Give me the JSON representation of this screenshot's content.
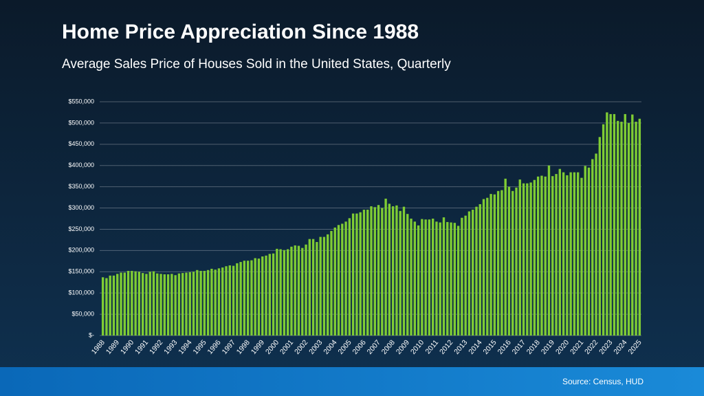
{
  "chart_data": {
    "type": "bar",
    "title": "Home Price Appreciation Since 1988",
    "subtitle": "Average Sales Price of Houses Sold in the United States, Quarterly",
    "source": "Source: Census, HUD",
    "color": "#7fcc34",
    "grid": true,
    "ylim": [
      0,
      550000
    ],
    "yticks": [
      {
        "value": 0,
        "label": "$-"
      },
      {
        "value": 50000,
        "label": "$50,000"
      },
      {
        "value": 100000,
        "label": "$100,000"
      },
      {
        "value": 150000,
        "label": "$150,000"
      },
      {
        "value": 200000,
        "label": "$200,000"
      },
      {
        "value": 250000,
        "label": "$250,000"
      },
      {
        "value": 300000,
        "label": "$300,000"
      },
      {
        "value": 350000,
        "label": "$350,000"
      },
      {
        "value": 400000,
        "label": "$400,000"
      },
      {
        "value": 450000,
        "label": "$450,000"
      },
      {
        "value": 500000,
        "label": "$500,000"
      },
      {
        "value": 550000,
        "label": "$550,000"
      }
    ],
    "categories": [
      "1988",
      null,
      null,
      null,
      "1989",
      null,
      null,
      null,
      "1990",
      null,
      null,
      null,
      "1991",
      null,
      null,
      null,
      "1992",
      null,
      null,
      null,
      "1993",
      null,
      null,
      null,
      "1994",
      null,
      null,
      null,
      "1995",
      null,
      null,
      null,
      "1996",
      null,
      null,
      null,
      "1997",
      null,
      null,
      null,
      "1998",
      null,
      null,
      null,
      "1999",
      null,
      null,
      null,
      "2000",
      null,
      null,
      null,
      "2001",
      null,
      null,
      null,
      "2002",
      null,
      null,
      null,
      "2003",
      null,
      null,
      null,
      "2004",
      null,
      null,
      null,
      "2005",
      null,
      null,
      null,
      "2006",
      null,
      null,
      null,
      "2007",
      null,
      null,
      null,
      "2008",
      null,
      null,
      null,
      "2009",
      null,
      null,
      null,
      "2010",
      null,
      null,
      null,
      "2011",
      null,
      null,
      null,
      "2012",
      null,
      null,
      null,
      "2013",
      null,
      null,
      null,
      "2014",
      null,
      null,
      null,
      "2015",
      null,
      null,
      null,
      "2016",
      null,
      null,
      null,
      "2017",
      null,
      null,
      null,
      "2018",
      null,
      null,
      null,
      "2019",
      null,
      null,
      null,
      "2020",
      null,
      null,
      null,
      "2021",
      null,
      null,
      null,
      "2022",
      null,
      null,
      null,
      "2023",
      null,
      null,
      null,
      "2024",
      null,
      null,
      null,
      "2025"
    ],
    "values": [
      137000,
      135000,
      141000,
      141000,
      145000,
      148000,
      148000,
      152000,
      152000,
      151000,
      150000,
      147000,
      145000,
      150000,
      151000,
      146000,
      145000,
      144000,
      144000,
      145000,
      142000,
      146000,
      147000,
      148000,
      149000,
      150000,
      154000,
      152000,
      152000,
      154000,
      157000,
      155000,
      158000,
      160000,
      163000,
      165000,
      164000,
      170000,
      173000,
      176000,
      176000,
      177000,
      182000,
      181000,
      186000,
      188000,
      192000,
      193000,
      204000,
      203000,
      201000,
      203000,
      209000,
      212000,
      211000,
      206000,
      214000,
      227000,
      227000,
      220000,
      232000,
      232000,
      238000,
      246000,
      254000,
      260000,
      263000,
      268000,
      276000,
      287000,
      287000,
      290000,
      296000,
      296000,
      304000,
      302000,
      307000,
      300000,
      322000,
      310000,
      304000,
      306000,
      293000,
      303000,
      286000,
      275000,
      268000,
      259000,
      274000,
      273000,
      273000,
      275000,
      268000,
      266000,
      278000,
      267000,
      266000,
      265000,
      258000,
      277000,
      282000,
      292000,
      296000,
      303000,
      309000,
      321000,
      324000,
      333000,
      332000,
      340000,
      342000,
      369000,
      350000,
      340000,
      348000,
      367000,
      358000,
      358000,
      360000,
      366000,
      374000,
      376000,
      374000,
      400000,
      375000,
      380000,
      392000,
      384000,
      377000,
      384000,
      384000,
      384000,
      371000,
      399000,
      395000,
      415000,
      428000,
      467000,
      497000,
      525000,
      521000,
      521000,
      505000,
      503000,
      521000,
      500000,
      520000,
      503000,
      510000
    ]
  }
}
